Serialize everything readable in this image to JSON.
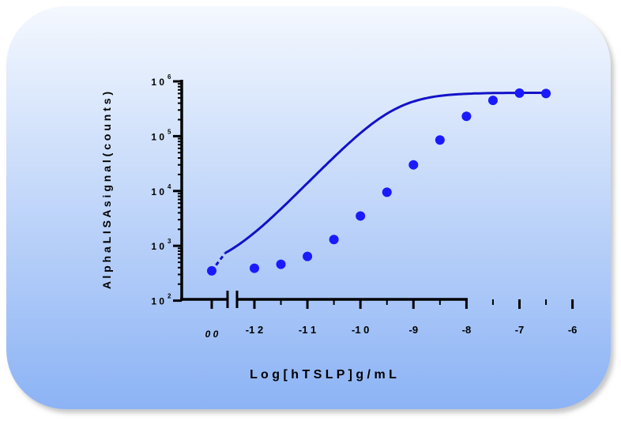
{
  "chart_data": {
    "type": "line",
    "xlabel": "L o g  [ h T S L P ]  g / m L",
    "ylabel": "A l p h a L I S A  s i g n a l  ( c o u n t s )",
    "y_scale": "log",
    "ylim": [
      100,
      1000000
    ],
    "xlim": [
      -12.55,
      -6
    ],
    "x_break": {
      "zero_label": "0 0",
      "zero_value": 350
    },
    "x_ticks": [
      {
        "value": -12,
        "label": "-1 2"
      },
      {
        "value": -11,
        "label": "-1 1"
      },
      {
        "value": -10,
        "label": "-1 0"
      },
      {
        "value": -9,
        "label": "-9"
      },
      {
        "value": -8,
        "label": "-8"
      },
      {
        "value": -7,
        "label": "-7"
      },
      {
        "value": -6,
        "label": "-6"
      }
    ],
    "y_ticks": [
      {
        "value": 100,
        "base": "1 0",
        "exp": "2"
      },
      {
        "value": 1000,
        "base": "1 0",
        "exp": "3"
      },
      {
        "value": 10000,
        "base": "1 0",
        "exp": "4"
      },
      {
        "value": 100000,
        "base": "1 0",
        "exp": "5"
      },
      {
        "value": 1000000,
        "base": "1 0",
        "exp": "6"
      }
    ],
    "series": [
      {
        "color": "#1a1aff",
        "curve_color": "#1212c8",
        "x": [
          -12,
          -11.5,
          -11,
          -10.5,
          -10,
          -9.5,
          -9,
          -8.5,
          -8,
          -7.5,
          -7,
          -6.5
        ],
        "y": [
          390,
          460,
          640,
          1300,
          3500,
          9500,
          30000,
          85000,
          230000,
          450000,
          610000,
          600000
        ]
      }
    ],
    "grid": false,
    "legend": "none"
  }
}
